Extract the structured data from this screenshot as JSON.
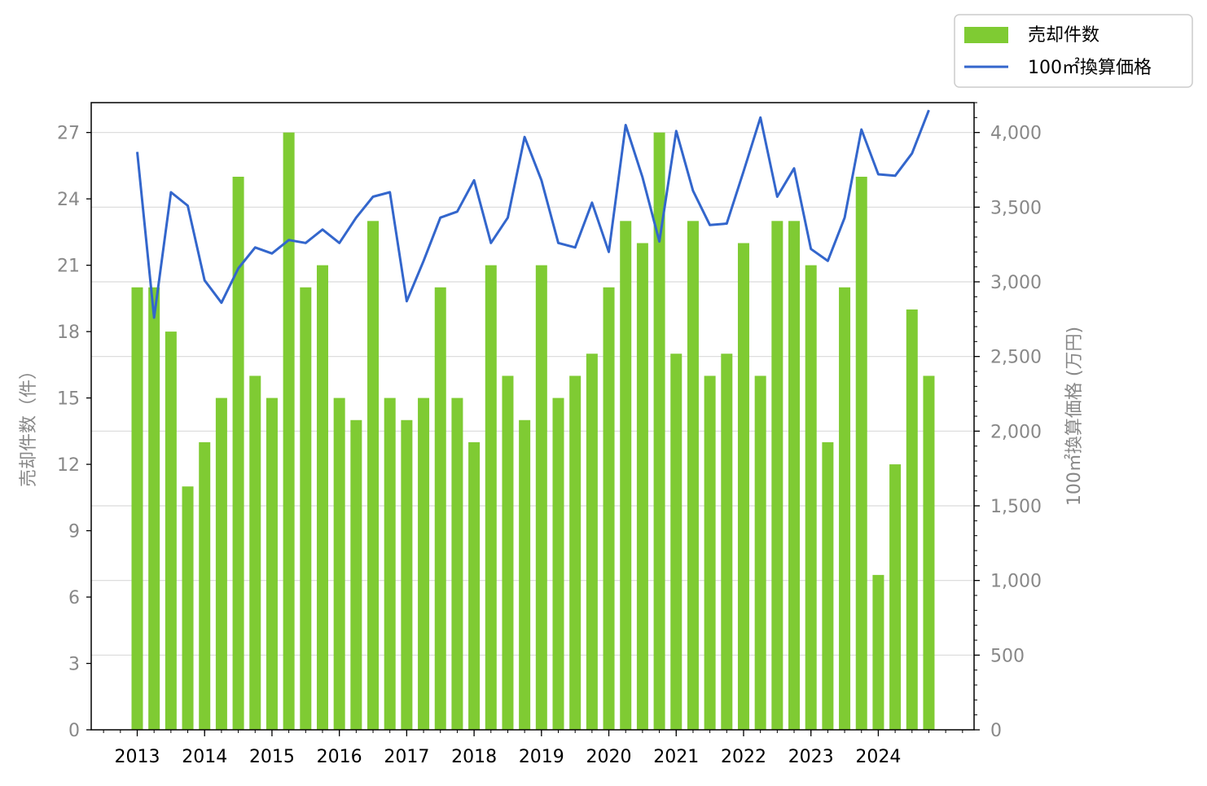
{
  "chart_data": {
    "type": "bar",
    "x_tick_labels": [
      "2013",
      "2014",
      "2015",
      "2016",
      "2017",
      "2018",
      "2019",
      "2020",
      "2021",
      "2022",
      "2023",
      "2024"
    ],
    "quarters_per_year": 4,
    "series": [
      {
        "name": "売却件数",
        "type": "bar",
        "axis": "left",
        "color": "#7fcb33",
        "values": [
          20,
          20,
          18,
          11,
          13,
          15,
          25,
          16,
          15,
          27,
          20,
          21,
          15,
          14,
          23,
          15,
          14,
          15,
          20,
          15,
          13,
          21,
          16,
          14,
          21,
          15,
          16,
          17,
          20,
          23,
          22,
          27,
          17,
          23,
          16,
          17,
          22,
          16,
          23,
          23,
          21,
          13,
          20,
          25,
          7,
          12,
          19,
          16
        ]
      },
      {
        "name": "100㎡換算価格",
        "type": "line",
        "axis": "right",
        "color": "#3366cc",
        "values": [
          3870,
          2760,
          3600,
          3510,
          3010,
          2860,
          3090,
          3230,
          3190,
          3280,
          3260,
          3350,
          3260,
          3430,
          3570,
          3600,
          2870,
          3140,
          3430,
          3470,
          3680,
          3260,
          3430,
          3970,
          3680,
          3260,
          3230,
          3530,
          3200,
          4050,
          3700,
          3270,
          4010,
          3610,
          3380,
          3390,
          3740,
          4100,
          3570,
          3760,
          3220,
          3140,
          3430,
          4020,
          3720,
          3710,
          3860,
          4150
        ]
      }
    ],
    "y_left": {
      "label": "売却件数（件）",
      "ylim": [
        0,
        28.35
      ],
      "ticks": [
        "0",
        "3",
        "6",
        "9",
        "12",
        "15",
        "18",
        "21",
        "24",
        "27"
      ]
    },
    "y_right": {
      "label": "100㎡換算価格 (万円)",
      "ylim": [
        0,
        4200
      ],
      "ticks": [
        "0",
        "500",
        "1,000",
        "1,500",
        "2,000",
        "2,500",
        "3,000",
        "3,500",
        "4,000"
      ]
    },
    "grid": true,
    "legend_position": "top-right, outside plot"
  }
}
